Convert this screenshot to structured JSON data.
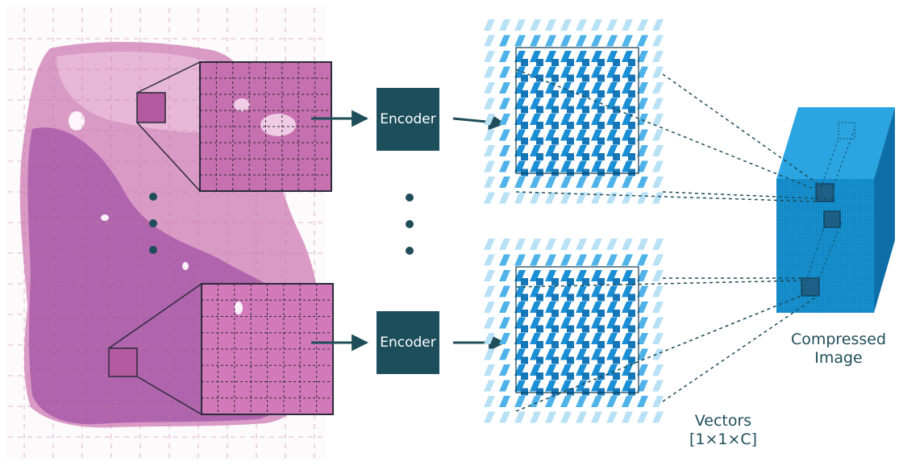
{
  "diagram": {
    "encoder_label": "Encoder",
    "vectors_label_line1": "Vectors",
    "vectors_label_line2": "[1×1×C]",
    "compressed_label_line1": "Compressed",
    "compressed_label_line2": "Image"
  },
  "colors": {
    "tissue_pink": "#d48cc0",
    "tissue_purple": "#9a4fa3",
    "patch_fill": "#c96aae",
    "encoder_fill": "#1c4e5c",
    "vector_blue": "#1a8fd6",
    "vector_light": "#8fd0f0",
    "cube_front": "#1690cf",
    "cube_top": "#2ba5e2",
    "cube_side": "#0e6fa8",
    "arrow": "#1f4e5a",
    "grid_dash": "#c77a9a"
  }
}
